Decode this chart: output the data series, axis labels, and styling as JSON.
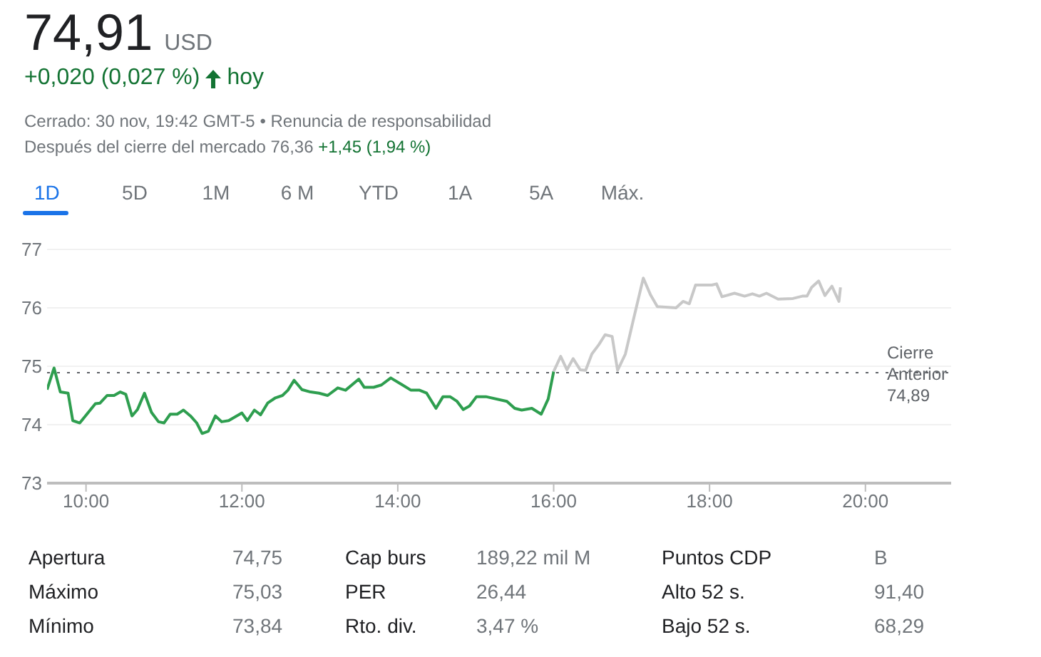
{
  "chart_data": {
    "type": "line",
    "title": "74,91",
    "subtitle": "+0,020 (0,027 %)",
    "annotations": [
      "USD",
      "hoy",
      "Cerrado: 30 nov, 19:42 GMT-5 • Renuncia de responsabilidad",
      "Después del cierre del mercado 76,36",
      "+1,45 (1,94 %)",
      "1D",
      "5D",
      "1M",
      "6 M",
      "YTD",
      "1A",
      "5A",
      "Máx.",
      "Apertura",
      "74,75",
      "Cap burs",
      "189,22 mil M",
      "Puntos CDP",
      "B",
      "Máximo",
      "75,03",
      "PER",
      "26,44",
      "Alto 52 s.",
      "91,40",
      "Mínimo",
      "73,84",
      "Rto. div.",
      "3,47 %",
      "Bajo 52 s.",
      "68,29"
    ],
    "series": [
      {
        "color": "#2e9e4f",
        "x": [
          9.5,
          9.59,
          9.67,
          9.77,
          9.83,
          9.92,
          10.12,
          10.18,
          10.27,
          10.36,
          10.44,
          10.51,
          10.59,
          10.66,
          10.75,
          10.84,
          10.93,
          11.0,
          11.08,
          11.17,
          11.25,
          11.34,
          11.42,
          11.49,
          11.57,
          11.66,
          11.74,
          11.83,
          12.0,
          12.07,
          12.16,
          12.24,
          12.33,
          12.43,
          12.52,
          12.59,
          12.67,
          12.77,
          12.88,
          12.99,
          13.1,
          13.23,
          13.33,
          13.5,
          13.57,
          13.69,
          13.79,
          13.91,
          14.06,
          14.17,
          14.28,
          14.37,
          14.49,
          14.58,
          14.67,
          14.76,
          14.84,
          14.92,
          15.01,
          15.13,
          15.4,
          15.5,
          15.59,
          15.72,
          15.84,
          15.93,
          16.0
        ],
        "values": [
          74.6,
          74.97,
          74.56,
          74.54,
          74.07,
          74.03,
          74.36,
          74.37,
          74.5,
          74.5,
          74.56,
          74.52,
          74.15,
          74.26,
          74.54,
          74.21,
          74.05,
          74.03,
          74.18,
          74.18,
          74.25,
          74.15,
          74.03,
          73.85,
          73.89,
          74.15,
          74.05,
          74.07,
          74.2,
          74.07,
          74.25,
          74.17,
          74.37,
          74.46,
          74.5,
          74.59,
          74.76,
          74.6,
          74.56,
          74.54,
          74.5,
          74.63,
          74.59,
          74.78,
          74.64,
          74.64,
          74.68,
          74.8,
          74.68,
          74.59,
          74.59,
          74.54,
          74.28,
          74.48,
          74.48,
          74.4,
          74.26,
          74.32,
          74.48,
          74.48,
          74.4,
          74.28,
          74.25,
          74.28,
          74.18,
          74.44,
          74.91
        ]
      },
      {
        "color": "#c8c8c8",
        "x": [
          16.0,
          16.09,
          16.17,
          16.25,
          16.34,
          16.41,
          16.49,
          16.58,
          16.66,
          16.75,
          16.82,
          16.92,
          17.02,
          17.15,
          17.24,
          17.33,
          17.57,
          17.66,
          17.74,
          17.82,
          18.03,
          18.09,
          18.16,
          18.32,
          18.45,
          18.55,
          18.64,
          18.73,
          18.88,
          19.07,
          19.19,
          19.25,
          19.31,
          19.4,
          19.48,
          19.57,
          19.66,
          19.68
        ],
        "values": [
          74.91,
          75.17,
          74.94,
          75.13,
          74.94,
          74.93,
          75.21,
          75.37,
          75.54,
          75.51,
          74.93,
          75.21,
          75.78,
          76.51,
          76.23,
          76.02,
          76.0,
          76.11,
          76.07,
          76.39,
          76.39,
          76.41,
          76.19,
          76.25,
          76.2,
          76.24,
          76.2,
          76.25,
          76.15,
          76.16,
          76.2,
          76.2,
          76.35,
          76.46,
          76.21,
          76.37,
          76.11,
          76.35
        ]
      }
    ],
    "xlim": [
      9.5,
      21.1
    ],
    "xticks": [
      {
        "value": 10,
        "label": "10:00"
      },
      {
        "value": 12,
        "label": "12:00"
      },
      {
        "value": 14,
        "label": "14:00"
      },
      {
        "value": 16,
        "label": "16:00"
      },
      {
        "value": 18,
        "label": "18:00"
      },
      {
        "value": 20,
        "label": "20:00"
      }
    ],
    "ylim": [
      73,
      77
    ],
    "yticks": [
      73,
      74,
      75,
      76,
      77
    ],
    "ref_lines": [
      {
        "axis": "y",
        "value": 74.89,
        "label": "Cierre Anterior 74,89",
        "color": "#5f6368",
        "line_style": "dotted"
      }
    ],
    "grid": "y",
    "legend": false,
    "marker": "none",
    "line_style": "solid"
  }
}
